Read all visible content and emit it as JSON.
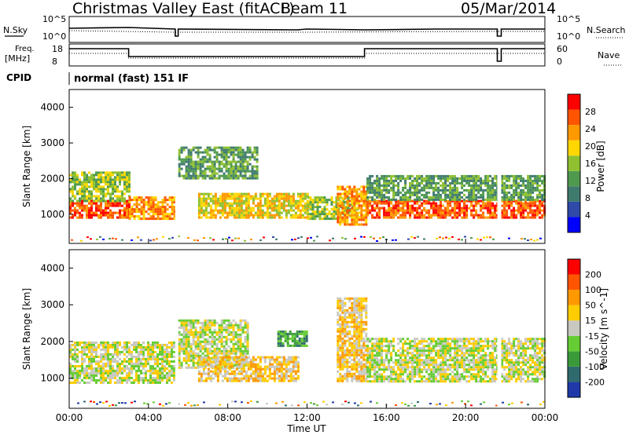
{
  "header": {
    "title": "Christmas Valley East (fitACF)",
    "beam": "Beam 11",
    "date": "05/Mar/2014"
  },
  "strips": {
    "sky_label": "N.Sky",
    "search_label": "N.Search",
    "sky_ticks": [
      "10^5",
      "10^0"
    ],
    "search_ticks": [
      "10^5",
      "10^0"
    ],
    "freq_label_1": "Freq.",
    "freq_label_2": "[MHz]",
    "freq_ticks": [
      "18",
      "8"
    ],
    "nave_label": "Nave",
    "nave_ticks": [
      "60",
      "0"
    ],
    "cpid_label": "CPID",
    "cpid_value": "normal (fast) 151 IF"
  },
  "power_panel": {
    "ylabel": "Slant Range [km]",
    "yticks": [
      "4000",
      "3000",
      "2000",
      "1000"
    ],
    "colorbar_label": "Power [dB]",
    "colorbar_ticks": [
      "28",
      "24",
      "20",
      "16",
      "12",
      "8",
      "4"
    ],
    "colors": [
      "#0000ff",
      "#2f4aa8",
      "#3f7a6e",
      "#4f9a4f",
      "#8fc030",
      "#ffd700",
      "#ff9900",
      "#ff5500",
      "#ff0000"
    ]
  },
  "velocity_panel": {
    "ylabel": "Slant Range [km]",
    "yticks": [
      "4000",
      "3000",
      "2000",
      "1000"
    ],
    "colorbar_label": "Velocity [m s^-1]",
    "colorbar_ticks": [
      "200",
      "100",
      "50",
      "15",
      "-15",
      "-50",
      "-100",
      "-200"
    ],
    "colors": [
      "#1f3aa8",
      "#2f6b6e",
      "#3a9a3a",
      "#66cc33",
      "#c8c8c0",
      "#ffcc00",
      "#ff9900",
      "#ff5500",
      "#ff0000"
    ]
  },
  "xaxis": {
    "label": "Time UT",
    "ticks": [
      "00:00",
      "04:00",
      "08:00",
      "12:00",
      "16:00",
      "20:00",
      "00:00"
    ]
  },
  "chart_data": {
    "type": "heatmap",
    "title": "Christmas Valley East (fitACF)",
    "xlabel": "Time UT",
    "ylabel": "Slant Range [km]",
    "xlim": [
      0,
      24
    ],
    "ylim": [
      180,
      4500
    ],
    "power_range_db": [
      0,
      32
    ],
    "velocity_range": [
      -250,
      250
    ],
    "series": [
      {
        "name": "Power [dB]",
        "bands": [
          {
            "t": [
              0.0,
              3.0
            ],
            "r": [
              900,
              1400
            ],
            "level": 28
          },
          {
            "t": [
              0.0,
              3.0
            ],
            "r": [
              1400,
              2200
            ],
            "level": 16
          },
          {
            "t": [
              3.0,
              5.3
            ],
            "r": [
              900,
              1500
            ],
            "level": 24
          },
          {
            "t": [
              5.5,
              9.5
            ],
            "r": [
              2000,
              2900
            ],
            "level": 10
          },
          {
            "t": [
              6.5,
              12.0
            ],
            "r": [
              900,
              1600
            ],
            "level": 20
          },
          {
            "t": [
              12.0,
              14.5
            ],
            "r": [
              900,
              1500
            ],
            "level": 16
          },
          {
            "t": [
              13.5,
              15.0
            ],
            "r": [
              700,
              1800
            ],
            "level": 22
          },
          {
            "t": [
              15.0,
              24.0
            ],
            "r": [
              900,
              1400
            ],
            "level": 28
          },
          {
            "t": [
              15.0,
              24.0
            ],
            "r": [
              1400,
              2100
            ],
            "level": 12
          }
        ]
      },
      {
        "name": "Velocity [m s^-1]",
        "bands": [
          {
            "t": [
              0.0,
              5.3
            ],
            "r": [
              900,
              2000
            ],
            "level": 0
          },
          {
            "t": [
              5.5,
              9.0
            ],
            "r": [
              1300,
              2600
            ],
            "level": -30
          },
          {
            "t": [
              6.5,
              11.5
            ],
            "r": [
              900,
              1600
            ],
            "level": 40
          },
          {
            "t": [
              10.5,
              12.0
            ],
            "r": [
              1900,
              2300
            ],
            "level": -150
          },
          {
            "t": [
              13.5,
              15.0
            ],
            "r": [
              900,
              3200
            ],
            "level": 40
          },
          {
            "t": [
              15.0,
              24.0
            ],
            "r": [
              900,
              2100
            ],
            "level": 0
          }
        ]
      }
    ]
  }
}
